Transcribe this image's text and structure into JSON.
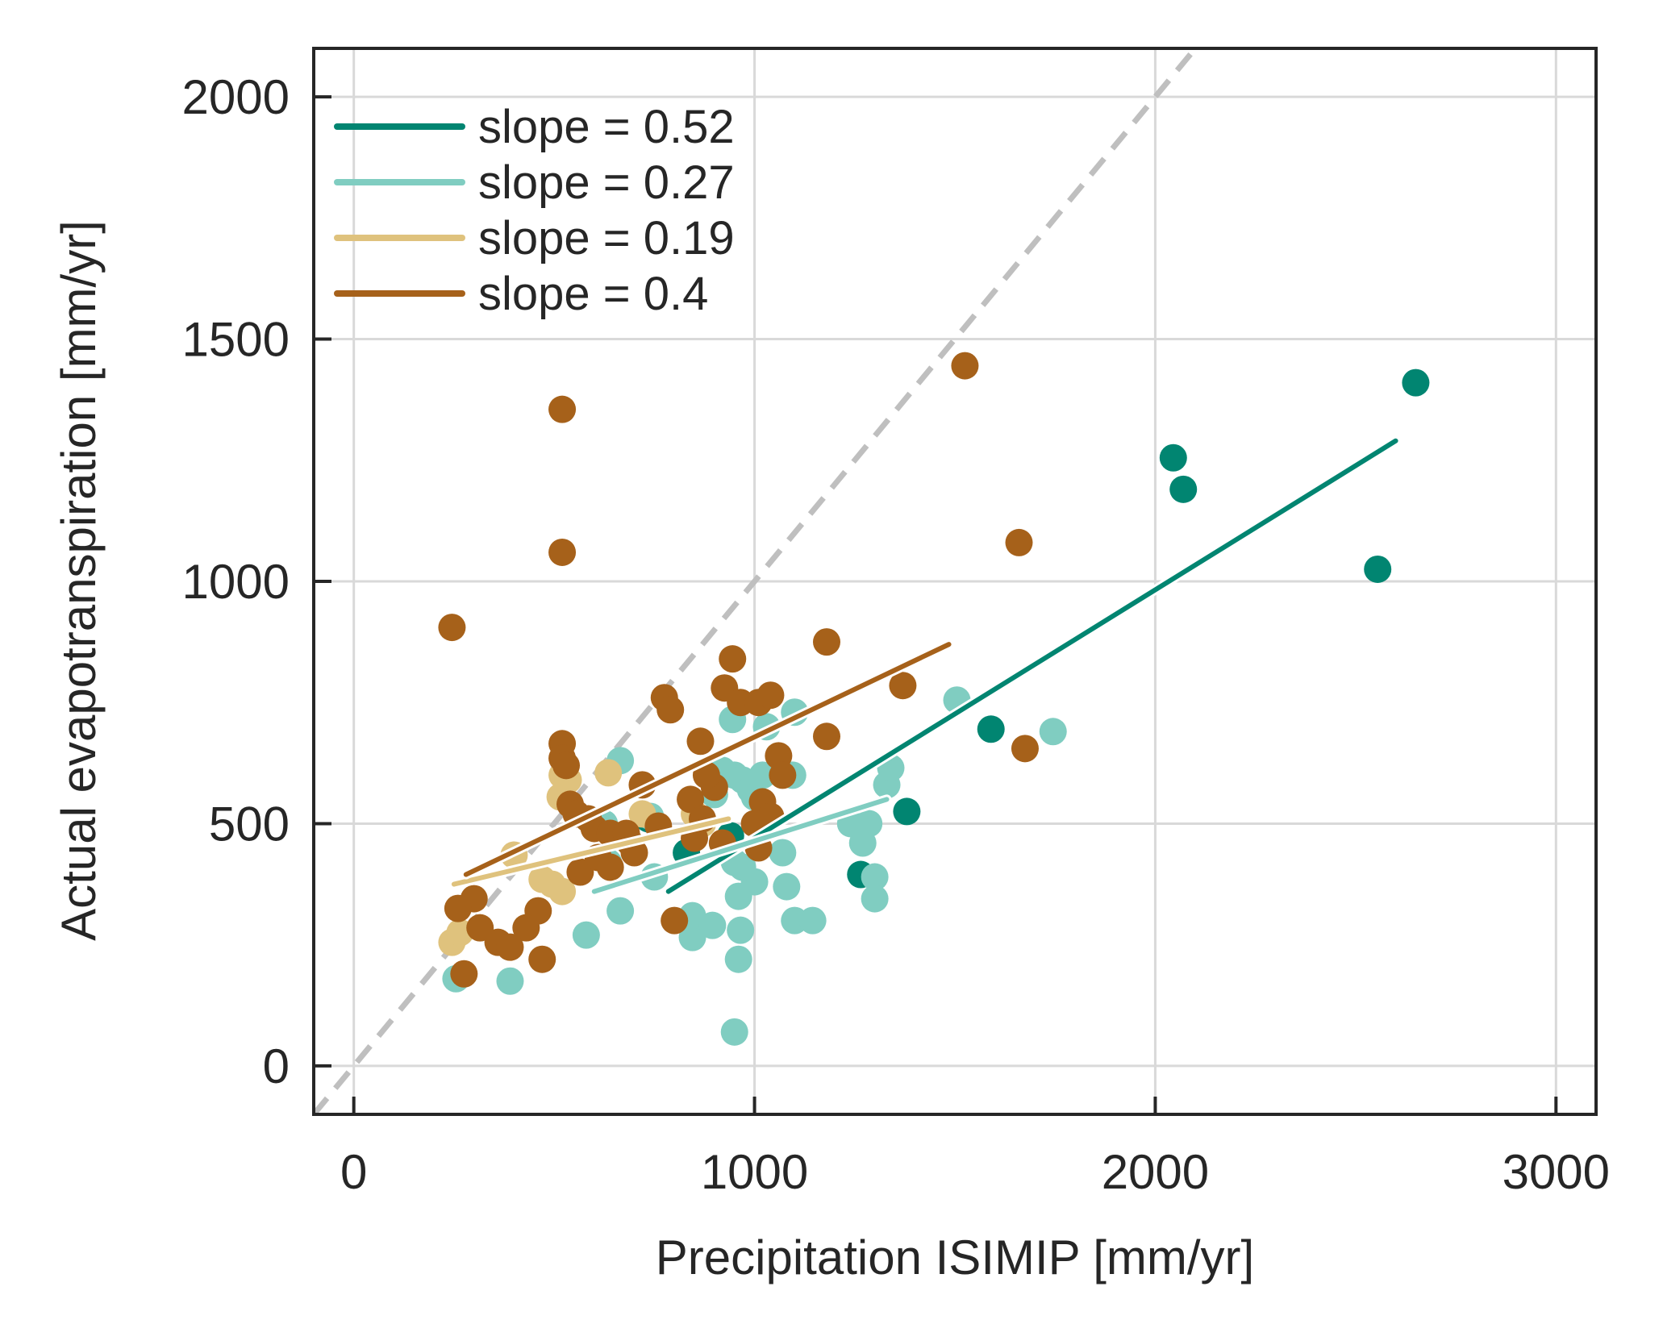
{
  "chart_data": {
    "type": "scatter",
    "xlabel": "Precipitation ISIMIP [mm/yr]",
    "ylabel": "Actual evapotranspiration [mm/yr]",
    "xlim": [
      -100,
      3100
    ],
    "ylim": [
      -100,
      2100
    ],
    "xticks": [
      0,
      1000,
      2000,
      3000
    ],
    "yticks": [
      0,
      500,
      1000,
      1500,
      2000
    ],
    "grid": true,
    "legend_position": "top-left",
    "one_to_one_line": {
      "color": "#bfbfbf",
      "style": "dashed"
    },
    "series": [
      {
        "name": "slope = 0.52",
        "color": "#018571",
        "points": [
          [
            2650,
            1410
          ],
          [
            2045,
            1255
          ],
          [
            2070,
            1190
          ],
          [
            2555,
            1025
          ],
          [
            1590,
            695
          ],
          [
            1380,
            525
          ],
          [
            1265,
            395
          ],
          [
            850,
            290
          ],
          [
            735,
            510
          ],
          [
            940,
            475
          ],
          [
            830,
            440
          ]
        ],
        "fit": {
          "x": [
            785,
            2600
          ],
          "y": [
            360,
            1290
          ]
        }
      },
      {
        "name": "slope = 0.27",
        "color": "#80cdc1",
        "points": [
          [
            255,
            180
          ],
          [
            390,
            175
          ],
          [
            580,
            270
          ],
          [
            665,
            320
          ],
          [
            750,
            390
          ],
          [
            845,
            265
          ],
          [
            845,
            310
          ],
          [
            965,
            280
          ],
          [
            960,
            220
          ],
          [
            950,
            70
          ],
          [
            895,
            290
          ],
          [
            1000,
            380
          ],
          [
            1070,
            440
          ],
          [
            1080,
            370
          ],
          [
            1100,
            300
          ],
          [
            1145,
            300
          ],
          [
            1240,
            500
          ],
          [
            1270,
            460
          ],
          [
            1285,
            500
          ],
          [
            1300,
            390
          ],
          [
            1300,
            345
          ],
          [
            1330,
            580
          ],
          [
            1340,
            615
          ],
          [
            1505,
            755
          ],
          [
            1745,
            690
          ],
          [
            665,
            630
          ],
          [
            625,
            500
          ],
          [
            635,
            420
          ],
          [
            740,
            515
          ],
          [
            950,
            600
          ],
          [
            970,
            590
          ],
          [
            990,
            570
          ],
          [
            1000,
            555
          ],
          [
            1020,
            600
          ],
          [
            1095,
            600
          ],
          [
            945,
            715
          ],
          [
            1030,
            700
          ],
          [
            1100,
            730
          ],
          [
            900,
            560
          ],
          [
            920,
            610
          ],
          [
            950,
            420
          ],
          [
            970,
            410
          ],
          [
            960,
            350
          ]
        ],
        "fit": {
          "x": [
            600,
            1330
          ],
          "y": [
            360,
            550
          ]
        }
      },
      {
        "name": "slope = 0.19",
        "color": "#dfc27d",
        "points": [
          [
            245,
            255
          ],
          [
            265,
            275
          ],
          [
            400,
            435
          ],
          [
            470,
            385
          ],
          [
            495,
            375
          ],
          [
            520,
            360
          ],
          [
            515,
            555
          ],
          [
            520,
            600
          ],
          [
            535,
            590
          ],
          [
            635,
            605
          ],
          [
            720,
            520
          ],
          [
            850,
            520
          ],
          [
            870,
            500
          ]
        ],
        "fit": {
          "x": [
            250,
            935
          ],
          "y": [
            375,
            510
          ]
        }
      },
      {
        "name": "slope = 0.4",
        "color": "#a6611a",
        "points": [
          [
            245,
            905
          ],
          [
            520,
            1355
          ],
          [
            520,
            1060
          ],
          [
            1525,
            1445
          ],
          [
            1660,
            1080
          ],
          [
            1180,
            875
          ],
          [
            945,
            840
          ],
          [
            925,
            780
          ],
          [
            965,
            750
          ],
          [
            1010,
            750
          ],
          [
            1040,
            765
          ],
          [
            775,
            760
          ],
          [
            790,
            735
          ],
          [
            865,
            670
          ],
          [
            1180,
            680
          ],
          [
            1675,
            655
          ],
          [
            1370,
            785
          ],
          [
            520,
            665
          ],
          [
            520,
            635
          ],
          [
            530,
            620
          ],
          [
            540,
            540
          ],
          [
            555,
            520
          ],
          [
            585,
            510
          ],
          [
            600,
            490
          ],
          [
            640,
            480
          ],
          [
            690,
            460
          ],
          [
            565,
            400
          ],
          [
            460,
            320
          ],
          [
            430,
            285
          ],
          [
            360,
            255
          ],
          [
            390,
            245
          ],
          [
            470,
            220
          ],
          [
            275,
            190
          ],
          [
            300,
            345
          ],
          [
            260,
            325
          ],
          [
            315,
            285
          ],
          [
            840,
            550
          ],
          [
            900,
            575
          ],
          [
            870,
            510
          ],
          [
            850,
            470
          ],
          [
            1020,
            545
          ],
          [
            1040,
            515
          ],
          [
            1060,
            640
          ],
          [
            1070,
            600
          ],
          [
            1010,
            450
          ],
          [
            1000,
            500
          ],
          [
            800,
            300
          ],
          [
            920,
            460
          ],
          [
            700,
            440
          ],
          [
            640,
            410
          ],
          [
            610,
            430
          ],
          [
            680,
            480
          ],
          [
            760,
            495
          ],
          [
            720,
            580
          ],
          [
            880,
            600
          ]
        ],
        "fit": {
          "x": [
            280,
            1485
          ],
          "y": [
            395,
            870
          ]
        }
      }
    ]
  }
}
